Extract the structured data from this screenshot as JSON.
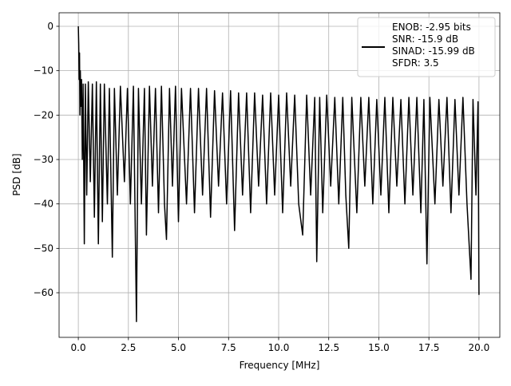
{
  "chart_data": {
    "type": "line",
    "title": "",
    "xlabel": "Frequency [MHz]",
    "ylabel": "PSD [dB]",
    "xlim": [
      -0.96,
      21.04
    ],
    "ylim": [
      -70.05,
      3.05
    ],
    "xticks": [
      0.0,
      2.5,
      5.0,
      7.5,
      10.0,
      12.5,
      15.0,
      17.5,
      20.0
    ],
    "xtick_labels": [
      "0.0",
      "2.5",
      "5.0",
      "7.5",
      "10.0",
      "12.5",
      "15.0",
      "17.5",
      "20.0"
    ],
    "yticks": [
      0,
      -10,
      -20,
      -30,
      -40,
      -50,
      -60
    ],
    "ytick_labels": [
      "0",
      "−10",
      "−20",
      "−30",
      "−40",
      "−50",
      "−60"
    ],
    "grid": true,
    "legend_placement": "upper-right",
    "legend_lines": [
      "ENOB: -2.95 bits",
      "SNR: -15.9 dB",
      "SINAD: -15.99 dB",
      "SFDR: 3.5"
    ],
    "line_color": "#000000",
    "series": [
      {
        "points": [
          [
            0,
            0
          ],
          [
            0.02,
            -4
          ],
          [
            0.04,
            -12
          ],
          [
            0.06,
            -6
          ],
          [
            0.08,
            -20
          ],
          [
            0.1,
            -10
          ],
          [
            0.13,
            -18
          ],
          [
            0.16,
            -12
          ],
          [
            0.2,
            -30
          ],
          [
            0.24,
            -13
          ],
          [
            0.3,
            -49
          ],
          [
            0.35,
            -13
          ],
          [
            0.42,
            -38
          ],
          [
            0.5,
            -12.5
          ],
          [
            0.6,
            -35
          ],
          [
            0.7,
            -13
          ],
          [
            0.8,
            -43
          ],
          [
            0.9,
            -12.5
          ],
          [
            1.0,
            -49
          ],
          [
            1.1,
            -13
          ],
          [
            1.2,
            -44
          ],
          [
            1.3,
            -13
          ],
          [
            1.45,
            -40
          ],
          [
            1.55,
            -14
          ],
          [
            1.7,
            -52
          ],
          [
            1.8,
            -14
          ],
          [
            1.95,
            -38
          ],
          [
            2.1,
            -13.5
          ],
          [
            2.3,
            -35
          ],
          [
            2.45,
            -14
          ],
          [
            2.6,
            -40
          ],
          [
            2.75,
            -13.5
          ],
          [
            2.9,
            -66.5
          ],
          [
            3.0,
            -14
          ],
          [
            3.15,
            -40
          ],
          [
            3.3,
            -14
          ],
          [
            3.4,
            -47
          ],
          [
            3.55,
            -13.5
          ],
          [
            3.7,
            -36
          ],
          [
            3.85,
            -14
          ],
          [
            4.0,
            -42
          ],
          [
            4.15,
            -13.5
          ],
          [
            4.3,
            -40
          ],
          [
            4.4,
            -48
          ],
          [
            4.55,
            -14
          ],
          [
            4.7,
            -36
          ],
          [
            4.85,
            -13.5
          ],
          [
            5.0,
            -44
          ],
          [
            5.15,
            -14
          ],
          [
            5.4,
            -40
          ],
          [
            5.6,
            -14
          ],
          [
            5.8,
            -42
          ],
          [
            6.0,
            -14
          ],
          [
            6.2,
            -38
          ],
          [
            6.4,
            -14
          ],
          [
            6.6,
            -43
          ],
          [
            6.8,
            -14.5
          ],
          [
            7.0,
            -36
          ],
          [
            7.2,
            -15
          ],
          [
            7.4,
            -40
          ],
          [
            7.6,
            -14.5
          ],
          [
            7.8,
            -46
          ],
          [
            8.0,
            -15
          ],
          [
            8.2,
            -38
          ],
          [
            8.4,
            -15
          ],
          [
            8.6,
            -42
          ],
          [
            8.8,
            -15
          ],
          [
            9.0,
            -36
          ],
          [
            9.2,
            -15.5
          ],
          [
            9.4,
            -40
          ],
          [
            9.6,
            -15
          ],
          [
            9.8,
            -38
          ],
          [
            10.0,
            -15.5
          ],
          [
            10.2,
            -42
          ],
          [
            10.4,
            -15
          ],
          [
            10.6,
            -36
          ],
          [
            10.8,
            -15.5
          ],
          [
            11.0,
            -40
          ],
          [
            11.2,
            -47
          ],
          [
            11.4,
            -15.5
          ],
          [
            11.6,
            -38
          ],
          [
            11.8,
            -16
          ],
          [
            11.9,
            -53
          ],
          [
            12.05,
            -16
          ],
          [
            12.2,
            -42
          ],
          [
            12.4,
            -15.5
          ],
          [
            12.6,
            -36
          ],
          [
            12.8,
            -16
          ],
          [
            13.0,
            -40
          ],
          [
            13.2,
            -16
          ],
          [
            13.35,
            -38
          ],
          [
            13.5,
            -50
          ],
          [
            13.65,
            -16
          ],
          [
            13.9,
            -42
          ],
          [
            14.1,
            -16
          ],
          [
            14.3,
            -36
          ],
          [
            14.5,
            -16
          ],
          [
            14.7,
            -40
          ],
          [
            14.9,
            -16.5
          ],
          [
            15.1,
            -38
          ],
          [
            15.3,
            -16
          ],
          [
            15.5,
            -42
          ],
          [
            15.7,
            -16
          ],
          [
            15.9,
            -36
          ],
          [
            16.1,
            -16.5
          ],
          [
            16.3,
            -40
          ],
          [
            16.5,
            -16
          ],
          [
            16.7,
            -38
          ],
          [
            16.9,
            -16
          ],
          [
            17.1,
            -42
          ],
          [
            17.25,
            -16.5
          ],
          [
            17.4,
            -53.5
          ],
          [
            17.55,
            -16
          ],
          [
            17.8,
            -40
          ],
          [
            18.0,
            -16.5
          ],
          [
            18.2,
            -36
          ],
          [
            18.4,
            -16
          ],
          [
            18.6,
            -42
          ],
          [
            18.8,
            -16.5
          ],
          [
            19.0,
            -38
          ],
          [
            19.2,
            -16
          ],
          [
            19.4,
            -40
          ],
          [
            19.6,
            -57
          ],
          [
            19.7,
            -16.5
          ],
          [
            19.85,
            -38
          ],
          [
            19.95,
            -17
          ],
          [
            20.0,
            -60.5
          ]
        ]
      }
    ]
  }
}
